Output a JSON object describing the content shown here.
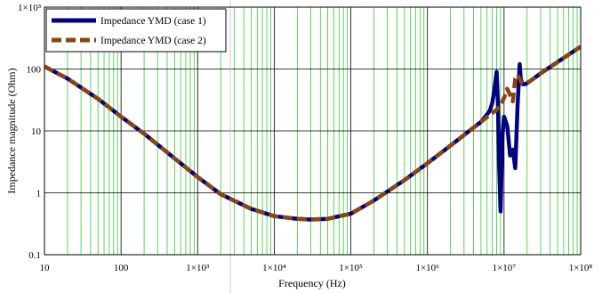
{
  "chart_data": {
    "type": "line",
    "xlabel": "Frequency (Hz)",
    "ylabel": "Impedance magnitude (Ohm)",
    "x_scale": "log",
    "y_scale": "log",
    "xlim": [
      10,
      100000000
    ],
    "ylim": [
      0.1,
      1000
    ],
    "grid": true,
    "legend_position": "top-left",
    "x_ticks": [
      {
        "value": 10,
        "label": "10"
      },
      {
        "value": 100,
        "label": "100"
      },
      {
        "value": 1000,
        "label": "1×10³"
      },
      {
        "value": 10000,
        "label": "1×10⁴"
      },
      {
        "value": 100000,
        "label": "1×10⁵"
      },
      {
        "value": 1000000,
        "label": "1×10⁶"
      },
      {
        "value": 10000000,
        "label": "1×10⁷"
      },
      {
        "value": 100000000,
        "label": "1×10⁸"
      }
    ],
    "y_ticks": [
      {
        "value": 0.1,
        "label": "0.1"
      },
      {
        "value": 1,
        "label": "1"
      },
      {
        "value": 10,
        "label": "10"
      },
      {
        "value": 100,
        "label": "100"
      },
      {
        "value": 1000,
        "label": "1×10³"
      }
    ],
    "series": [
      {
        "name": "Impedance YMD (case 1)",
        "color": "#000080",
        "style": "solid",
        "x": [
          10,
          20,
          50,
          100,
          200,
          500,
          1000,
          2000,
          5000,
          10000,
          20000,
          30000,
          50000,
          100000,
          200000,
          500000,
          1000000,
          2000000,
          5000000,
          6500000,
          7000000,
          7300000,
          7600000,
          8000000,
          8300000,
          8600000,
          9000000,
          9500000,
          10000000,
          11000000,
          12000000,
          13000000,
          14000000,
          15000000,
          16000000,
          16500000,
          17500000,
          19000000,
          22000000,
          30000000,
          50000000,
          100000000
        ],
        "y": [
          110,
          70,
          33,
          17,
          9,
          3.6,
          1.8,
          0.95,
          0.55,
          0.42,
          0.38,
          0.37,
          0.38,
          0.46,
          0.75,
          1.6,
          3.0,
          5.8,
          14,
          21,
          28,
          38,
          55,
          90,
          30,
          3,
          0.5,
          8,
          17,
          12,
          4,
          5,
          2.5,
          25,
          120,
          70,
          57,
          57,
          64,
          85,
          130,
          230
        ]
      },
      {
        "name": "Impedance YMD (case 2)",
        "color": "#8B4513",
        "style": "dashed",
        "x": [
          10,
          20,
          50,
          100,
          200,
          500,
          1000,
          2000,
          5000,
          10000,
          20000,
          30000,
          50000,
          100000,
          200000,
          500000,
          1000000,
          2000000,
          5000000,
          8000000,
          9000000,
          10000000,
          11000000,
          12000000,
          13000000,
          14000000,
          15000000,
          16000000,
          17000000,
          19000000,
          22000000,
          30000000,
          50000000,
          100000000
        ],
        "y": [
          110,
          70,
          33,
          17,
          9,
          3.6,
          1.8,
          0.95,
          0.55,
          0.42,
          0.38,
          0.37,
          0.38,
          0.46,
          0.75,
          1.6,
          3.0,
          5.8,
          14,
          22,
          26,
          34,
          48,
          38,
          30,
          70,
          80,
          70,
          60,
          58,
          64,
          85,
          130,
          230
        ]
      }
    ]
  }
}
